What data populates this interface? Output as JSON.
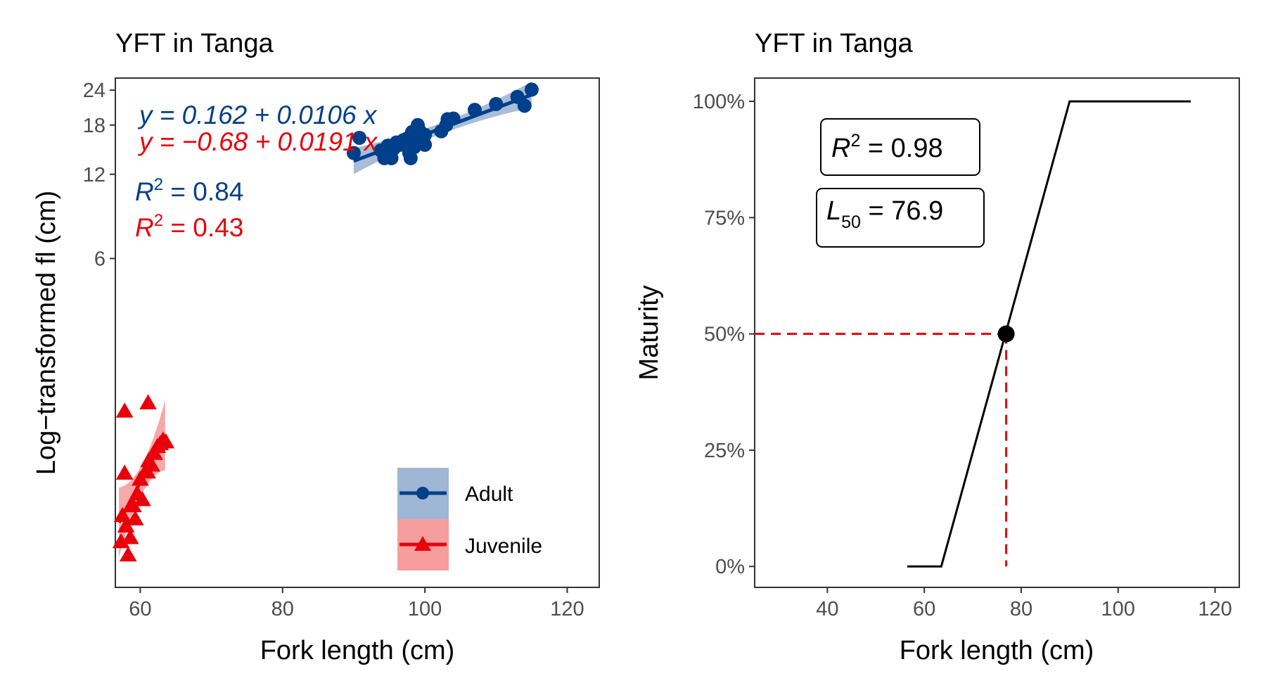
{
  "chart_data": [
    {
      "type": "scatter",
      "title": "YFT in Tanga",
      "xlabel": "Fork length (cm)",
      "ylabel": "Log−transformed fl (cm)",
      "x_ticks": [
        "60",
        "80",
        "100",
        "120"
      ],
      "y_ticks": [
        "6",
        "12",
        "18",
        "24"
      ],
      "xlim": [
        56.5,
        124.5
      ],
      "ylim": [
        0.4,
        26.5
      ],
      "y_scale": "log",
      "grid": false,
      "legend_position": "bottom-right",
      "series": [
        {
          "name": "Adult",
          "color": "#003f8a",
          "band_color": "#9fb6d4",
          "marker": "circle",
          "equation": "y = 0.162 + 0.0106 x",
          "r2_label": "R2 = 0.84",
          "fit": {
            "intercept": 0.162,
            "slope": 0.0106,
            "x_range": [
              90,
              115
            ]
          },
          "points": [
            [
              90,
              14.3
            ],
            [
              90.8,
              16.2
            ],
            [
              93.8,
              14.6
            ],
            [
              94.3,
              13.7
            ],
            [
              94.8,
              15.2
            ],
            [
              95,
              14.5
            ],
            [
              95.3,
              13.7
            ],
            [
              95.6,
              14.8
            ],
            [
              96,
              15.6
            ],
            [
              96.5,
              15.3
            ],
            [
              97,
              15.9
            ],
            [
              97.5,
              16.1
            ],
            [
              97.8,
              14.3
            ],
            [
              98,
              13.7
            ],
            [
              98.2,
              17.0
            ],
            [
              98.5,
              15.0
            ],
            [
              98.8,
              16.4
            ],
            [
              99,
              18.0
            ],
            [
              99.3,
              17.1
            ],
            [
              99.5,
              15.6
            ],
            [
              99.8,
              16.3
            ],
            [
              100,
              15.3
            ],
            [
              100,
              16.6
            ],
            [
              102.3,
              17.1
            ],
            [
              103,
              18.0
            ],
            [
              103.2,
              18.9
            ],
            [
              104,
              19.0
            ],
            [
              107,
              20.4
            ],
            [
              110,
              21.4
            ],
            [
              113,
              22.7
            ],
            [
              114,
              21.1
            ],
            [
              115,
              24.1
            ]
          ]
        },
        {
          "name": "Juvenile",
          "color": "#e8000b",
          "band_color": "#f69e9e",
          "marker": "triangle",
          "equation": "y = −0.68 + 0.0191 x",
          "r2_label": "R2 = 0.43",
          "fit": {
            "intercept": -0.68,
            "slope": 0.0191,
            "x_range": [
              57,
              63.5
            ]
          },
          "points": [
            [
              57.3,
              0.58
            ],
            [
              57.5,
              0.72
            ],
            [
              57.8,
              1.02
            ],
            [
              58,
              0.66
            ],
            [
              58.3,
              0.52
            ],
            [
              58.6,
              0.6
            ],
            [
              59,
              0.78
            ],
            [
              59.3,
              0.7
            ],
            [
              59.6,
              0.86
            ],
            [
              60,
              0.97
            ],
            [
              60.3,
              0.82
            ],
            [
              60.7,
              1.03
            ],
            [
              61,
              1.03
            ],
            [
              61.2,
              1.13
            ],
            [
              61.6,
              1.09
            ],
            [
              62,
              1.2
            ],
            [
              62.4,
              1.27
            ],
            [
              62.8,
              1.3
            ],
            [
              63.2,
              1.34
            ],
            [
              63.6,
              1.32
            ],
            [
              61.1,
              1.82
            ],
            [
              57.8,
              1.7
            ]
          ]
        }
      ]
    },
    {
      "type": "line",
      "title": "YFT in Tanga",
      "xlabel": "Fork length (cm)",
      "ylabel": "Maturity",
      "x_ticks": [
        "40",
        "60",
        "80",
        "100",
        "120"
      ],
      "y_ticks": [
        "0%",
        "25%",
        "50%",
        "75%",
        "100%"
      ],
      "xlim": [
        25,
        125
      ],
      "ylim": [
        -0.045,
        1.05
      ],
      "grid": false,
      "series": [
        {
          "color": "#000000",
          "x": [
            56.5,
            63.5,
            90,
            115
          ],
          "y": [
            0,
            0,
            1,
            1
          ]
        }
      ],
      "l50_point": {
        "x": 76.9,
        "y": 0.5
      },
      "reference_lines_color": "#e8000b",
      "r2_label": "R2 = 0.98",
      "l50_label": "L50 = 76.9"
    }
  ]
}
